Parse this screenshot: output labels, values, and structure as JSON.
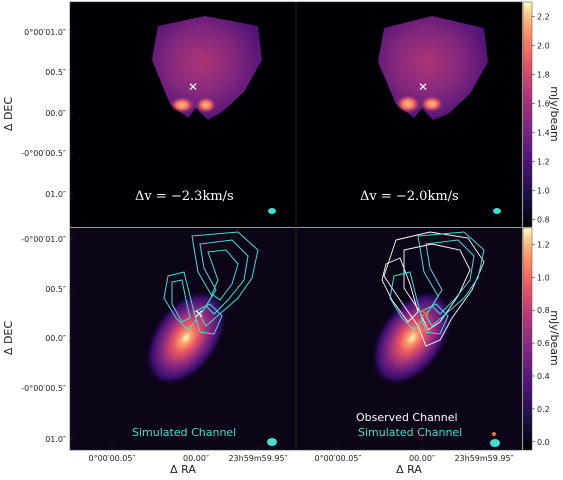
{
  "colors": {
    "simulated": "#40e0d0",
    "observed": "#ffffff",
    "marker": "#ffffff",
    "marker_alt": "#ff6a2a",
    "panel_bg": "#000000"
  },
  "chart_data": [
    {
      "type": "heatmap",
      "panel": "top-left",
      "title": "",
      "annotation": "Δv = −2.3km/s",
      "xlabel": "",
      "ylabel": "Δ DEC",
      "yticks": [
        "0°00′01.0″",
        "00.5″",
        "00.0″",
        "-0°00′00.5″",
        "01.0″"
      ],
      "colorbar_group": "top"
    },
    {
      "type": "heatmap",
      "panel": "top-right",
      "title": "",
      "annotation": "Δv = −2.0km/s",
      "xlabel": "",
      "ylabel": "",
      "colorbar_group": "top"
    },
    {
      "type": "heatmap",
      "panel": "bottom-left",
      "title": "",
      "annotation": "Simulated Channel",
      "xlabel": "Δ RA",
      "ylabel": "Δ DEC",
      "xticks": [
        "0°00′00.05″",
        "00.00″",
        "23h59m59.95″"
      ],
      "yticks": [
        "-0°00′01.0″",
        "00.5″",
        "00.0″",
        "-0°00′00.5″",
        "01.0″"
      ],
      "colorbar_group": "bottom"
    },
    {
      "type": "heatmap",
      "panel": "bottom-right",
      "title": "",
      "annotations": [
        "Observed Channel",
        "Simulated Channel"
      ],
      "xlabel": "Δ RA",
      "ylabel": "",
      "xticks": [
        "0°00′00.05″",
        "00.00″",
        "23h59m59.95″"
      ],
      "colorbar_group": "bottom"
    }
  ],
  "colorbars": {
    "top": {
      "label": "mJy/beam",
      "range": [
        0.75,
        2.3
      ],
      "ticks": [
        "2.2",
        "2.0",
        "1.8",
        "1.6",
        "1.4",
        "1.2",
        "1.0",
        "0.8"
      ]
    },
    "bottom": {
      "label": "mJy/beam",
      "range": [
        -0.05,
        1.3
      ],
      "ticks": [
        "1.2",
        "1.0",
        "0.8",
        "0.6",
        "0.4",
        "0.2",
        "0.0"
      ]
    }
  },
  "labels": {
    "ylabel_top": "Δ DEC",
    "ylabel_bottom": "Δ DEC",
    "xlabel_left": "Δ RA",
    "xlabel_right": "Δ RA",
    "v1": "Δv = −2.3km/s",
    "v2": "Δv = −2.0km/s",
    "sim_left": "Simulated Channel",
    "obs_right": "Observed Channel",
    "sim_right": "Simulated Channel"
  }
}
